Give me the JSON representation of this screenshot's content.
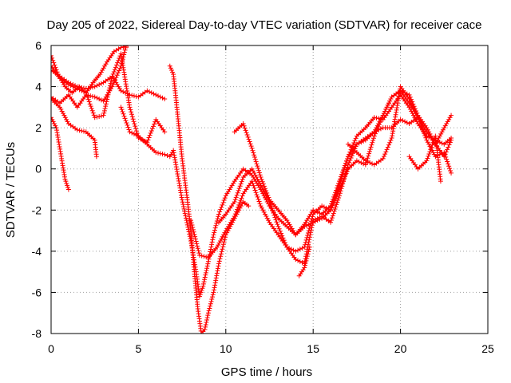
{
  "chart_data": {
    "type": "scatter",
    "title": "Day 205 of 2022, Sidereal Day-to-day VTEC variation (SDTVAR) for receiver cace",
    "xlabel": "GPS time / hours",
    "ylabel": "SDTVAR / TECUs",
    "xlim": [
      0,
      25
    ],
    "ylim": [
      -8,
      6
    ],
    "xticks": [
      0,
      5,
      10,
      15,
      20,
      25
    ],
    "yticks": [
      -8,
      -6,
      -4,
      -2,
      0,
      2,
      4,
      6
    ],
    "grid": true,
    "marker": "plus",
    "color": "#ff0000",
    "series": [
      {
        "x": [
          0.0,
          0.3,
          0.6,
          0.8,
          1.0
        ],
        "y": [
          2.5,
          2.0,
          0.5,
          -0.5,
          -1.0
        ]
      },
      {
        "x": [
          0.0,
          0.5,
          1.0,
          1.5,
          2.0,
          2.5,
          2.6
        ],
        "y": [
          3.4,
          3.0,
          2.2,
          1.9,
          1.8,
          1.4,
          0.6
        ]
      },
      {
        "x": [
          0.0,
          0.5,
          1.0,
          1.5,
          2.0,
          2.5,
          3.0,
          3.5,
          4.0,
          4.3
        ],
        "y": [
          3.5,
          3.2,
          3.6,
          3.0,
          3.6,
          3.5,
          3.3,
          4.0,
          5.0,
          6.0
        ]
      },
      {
        "x": [
          0.0,
          0.5,
          1.0,
          1.5,
          2.0,
          2.5,
          3.0,
          3.5,
          4.0,
          4.5,
          5.0,
          5.5,
          6.0,
          6.5
        ],
        "y": [
          4.8,
          4.5,
          4.2,
          4.0,
          3.9,
          4.0,
          4.2,
          4.5,
          3.8,
          3.6,
          3.5,
          3.8,
          3.6,
          3.4
        ]
      },
      {
        "x": [
          0.0,
          0.5,
          1.0,
          1.5,
          2.0,
          2.5,
          3.0,
          3.5,
          4.0,
          4.5,
          5.0,
          5.5,
          6.0,
          6.5
        ],
        "y": [
          5.0,
          4.4,
          4.1,
          3.9,
          3.7,
          2.5,
          2.6,
          4.5,
          5.6,
          3.0,
          1.5,
          1.3,
          2.4,
          1.8
        ]
      },
      {
        "x": [
          0.0,
          0.4,
          0.8,
          1.2,
          1.6,
          2.0,
          2.4,
          2.8,
          3.2,
          3.6,
          4.0,
          4.4
        ],
        "y": [
          5.5,
          4.6,
          4.0,
          3.7,
          4.0,
          3.7,
          4.2,
          4.6,
          5.2,
          5.7,
          5.9,
          6.0
        ]
      },
      {
        "x": [
          4.0,
          4.5,
          5.0,
          5.5,
          6.0,
          6.5,
          6.8,
          7.0,
          7.5,
          8.0,
          8.3,
          8.5,
          8.7,
          9.0,
          9.3,
          9.6,
          10.0,
          10.5,
          11.0,
          11.5,
          12.0,
          12.5,
          13.0,
          13.5,
          14.0,
          14.5,
          15.0,
          15.5,
          16.0,
          16.5,
          17.0,
          17.5,
          18.0,
          18.5,
          19.0,
          19.5,
          20.0,
          20.5,
          21.0
        ],
        "y": [
          3.0,
          1.8,
          1.6,
          1.2,
          0.8,
          0.7,
          0.6,
          0.9,
          -1.5,
          -3.5,
          -5.0,
          -6.2,
          -5.7,
          -4.5,
          -3.2,
          -2.2,
          -1.3,
          -0.6,
          0.0,
          -0.3,
          -1.0,
          -1.8,
          -2.4,
          -2.8,
          -3.2,
          -2.7,
          -2.0,
          -2.2,
          -1.8,
          -0.6,
          0.6,
          1.2,
          1.5,
          1.8,
          2.0,
          2.0,
          2.4,
          2.2,
          2.5
        ]
      },
      {
        "x": [
          6.8,
          7.0,
          7.2,
          7.5,
          7.8,
          8.0,
          8.2,
          8.4,
          8.6,
          8.8,
          9.0,
          9.3,
          9.6,
          10.0,
          10.5,
          11.0,
          11.3
        ],
        "y": [
          5.0,
          4.6,
          3.0,
          0.5,
          -1.5,
          -3.0,
          -5.0,
          -6.8,
          -8.0,
          -7.8,
          -7.0,
          -6.0,
          -4.6,
          -3.2,
          -2.4,
          -1.6,
          -1.8
        ]
      },
      {
        "x": [
          8.0,
          8.5,
          9.0,
          9.5,
          10.0,
          10.5,
          11.0,
          11.5,
          12.0,
          12.5,
          13.0,
          13.5,
          14.0,
          14.5,
          15.0,
          15.5,
          16.0,
          16.5,
          17.0,
          17.5,
          18.0,
          18.5,
          19.0,
          19.5,
          20.0,
          20.5,
          21.0,
          21.5,
          22.0,
          22.5,
          22.9
        ],
        "y": [
          -2.5,
          -4.2,
          -4.3,
          -3.8,
          -3.0,
          -2.3,
          -1.2,
          -0.6,
          -1.8,
          -2.6,
          -3.2,
          -3.8,
          -4.0,
          -3.8,
          -2.2,
          -1.8,
          -2.0,
          -0.8,
          0.6,
          1.6,
          2.0,
          2.5,
          2.4,
          3.0,
          3.6,
          3.0,
          2.2,
          1.6,
          1.4,
          1.2,
          1.5
        ]
      },
      {
        "x": [
          9.6,
          10.0,
          10.5,
          11.0,
          11.5,
          12.0,
          12.5,
          13.0,
          13.5,
          14.0,
          14.5,
          15.0,
          15.5,
          16.0,
          16.5,
          17.0,
          17.5,
          18.0,
          18.5,
          19.0,
          19.5,
          20.0,
          20.5,
          21.0,
          21.5,
          22.0,
          22.5,
          22.9
        ],
        "y": [
          -2.6,
          -2.2,
          -1.6,
          -0.4,
          0.0,
          -0.8,
          -1.6,
          -2.8,
          -3.8,
          -4.4,
          -4.6,
          -2.5,
          -2.3,
          -2.6,
          -1.3,
          0.2,
          1.2,
          1.4,
          1.8,
          2.6,
          3.5,
          3.8,
          3.2,
          2.5,
          1.8,
          1.2,
          2.0,
          2.6
        ]
      },
      {
        "x": [
          10.5,
          11.0,
          11.5,
          12.0,
          12.5,
          13.0,
          13.5,
          14.0,
          14.5,
          15.0,
          15.5,
          16.0,
          16.5,
          17.0,
          17.5,
          18.0,
          18.5,
          19.0,
          19.5,
          20.0,
          20.5,
          21.0,
          21.5,
          22.0,
          22.5,
          22.9
        ],
        "y": [
          1.8,
          2.2,
          1.0,
          -0.4,
          -1.5,
          -2.0,
          -2.5,
          -3.2,
          -2.8,
          -2.6,
          -2.4,
          -2.0,
          -1.0,
          0.0,
          0.4,
          0.2,
          1.6,
          2.6,
          3.5,
          3.8,
          3.6,
          2.6,
          2.0,
          1.2,
          0.6,
          1.4
        ]
      },
      {
        "x": [
          14.2,
          14.5,
          14.8
        ],
        "y": [
          -5.2,
          -4.8,
          -3.8
        ]
      },
      {
        "x": [
          17.0,
          17.5,
          18.0,
          18.5,
          19.0,
          19.5,
          20.0,
          20.5,
          21.0,
          21.5,
          22.0,
          22.5,
          22.9
        ],
        "y": [
          1.2,
          0.8,
          0.4,
          0.2,
          0.5,
          1.5,
          4.0,
          3.4,
          2.5,
          1.4,
          0.6,
          0.8,
          -0.2
        ]
      },
      {
        "x": [
          20.5,
          21.0,
          21.5,
          22.0,
          22.3
        ],
        "y": [
          0.6,
          0.0,
          0.4,
          1.6,
          -0.6
        ]
      }
    ]
  }
}
